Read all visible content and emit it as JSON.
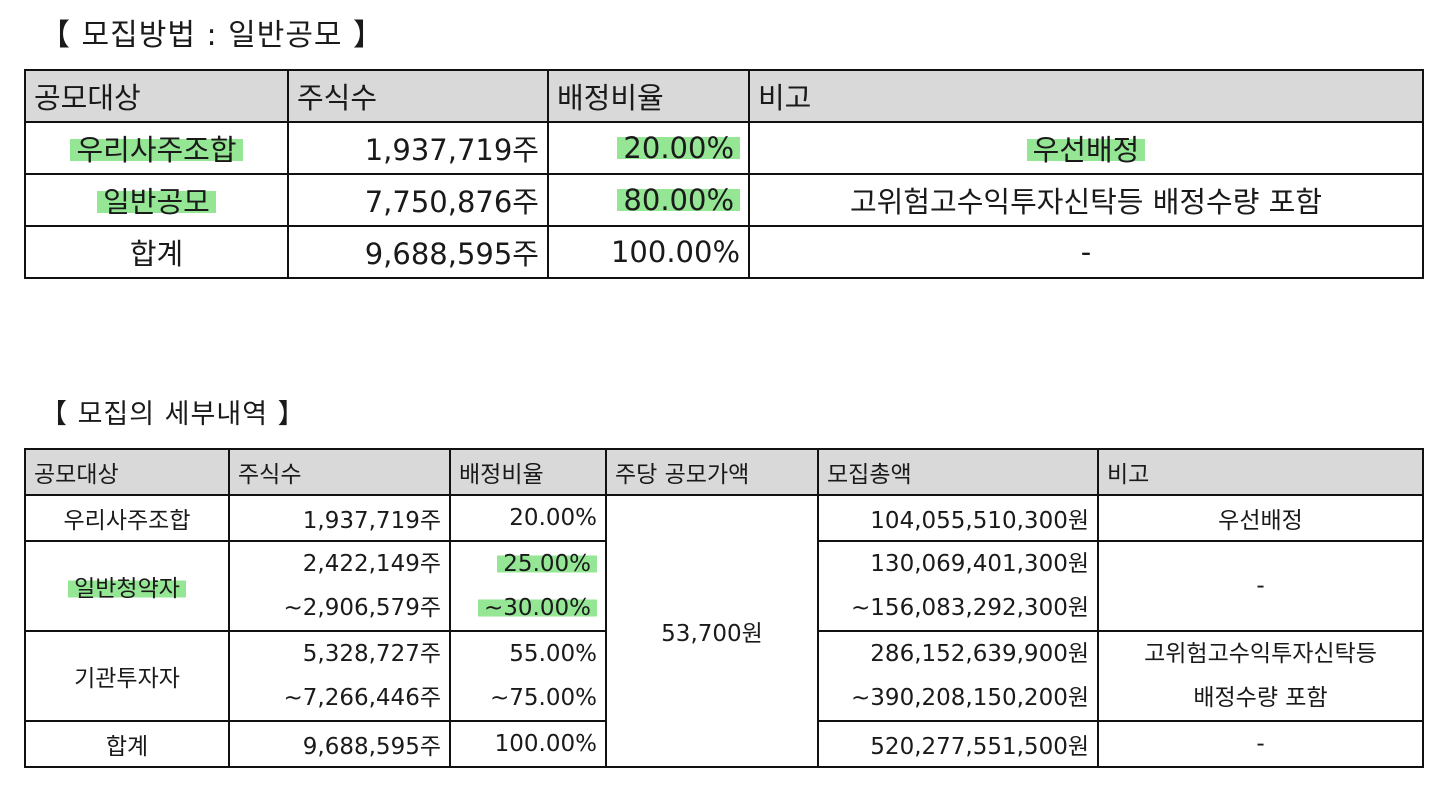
{
  "section1": {
    "heading": "【 모집방법 : 일반공모 】",
    "headers": [
      "공모대상",
      "주식수",
      "배정비율",
      "비고"
    ],
    "rows": [
      {
        "target": "우리사주조합",
        "shares": "1,937,719주",
        "ratio": "20.00%",
        "note": "우선배정"
      },
      {
        "target": "일반공모",
        "shares": "7,750,876주",
        "ratio": "80.00%",
        "note": "고위험고수익투자신탁등 배정수량 포함"
      },
      {
        "target": "합계",
        "shares": "9,688,595주",
        "ratio": "100.00%",
        "note": "-"
      }
    ]
  },
  "section2": {
    "heading": "【 모집의 세부내역 】",
    "headers": [
      "공모대상",
      "주식수",
      "배정비율",
      "주당 공모가액",
      "모집총액",
      "비고"
    ],
    "price": "53,700원",
    "rows": [
      {
        "target": "우리사주조합",
        "shares_1": "1,937,719주",
        "ratio_1": "20.00%",
        "total_1": "104,055,510,300원",
        "note_1": "우선배정"
      },
      {
        "target": "일반청약자",
        "shares_1": "2,422,149주",
        "shares_2": "~2,906,579주",
        "ratio_1": "25.00%",
        "ratio_2": "~30.00%",
        "total_1": "130,069,401,300원",
        "total_2": "~156,083,292,300원",
        "note_1": "-"
      },
      {
        "target": "기관투자자",
        "shares_1": "5,328,727주",
        "shares_2": "~7,266,446주",
        "ratio_1": "55.00%",
        "ratio_2": "~75.00%",
        "total_1": "286,152,639,900원",
        "total_2": "~390,208,150,200원",
        "note_1": "고위험고수익투자신탁등",
        "note_2": "배정수량 포함"
      },
      {
        "target": "합계",
        "shares_1": "9,688,595주",
        "ratio_1": "100.00%",
        "total_1": "520,277,551,500원",
        "note_1": "-"
      }
    ]
  },
  "highlight_color": "#82e182"
}
